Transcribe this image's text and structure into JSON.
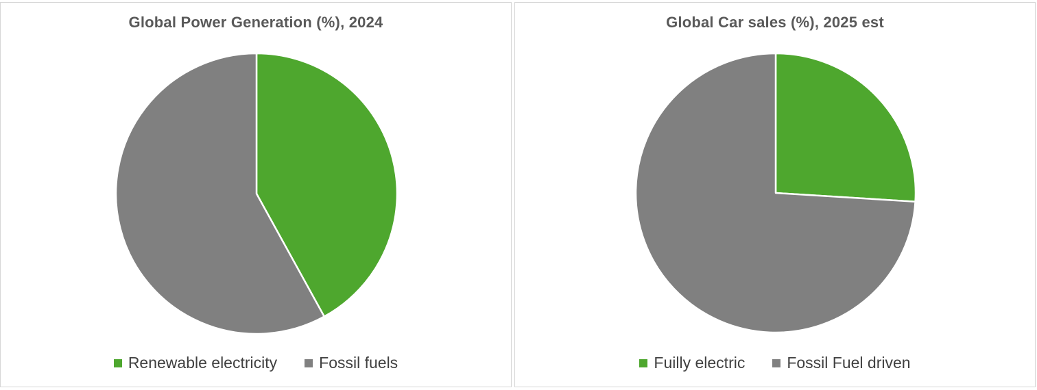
{
  "chart_data": [
    {
      "type": "pie",
      "title": "Global Power Generation (%), 2024",
      "categories": [
        "Renewable electricity",
        "Fossil fuels"
      ],
      "values": [
        42,
        58
      ],
      "colors": [
        "#4ea72e",
        "#808080"
      ],
      "legend_position": "bottom"
    },
    {
      "type": "pie",
      "title": "Global Car sales (%), 2025 est",
      "categories": [
        "Fuilly electric",
        "Fossil Fuel driven"
      ],
      "values": [
        26,
        74
      ],
      "colors": [
        "#4ea72e",
        "#808080"
      ],
      "legend_position": "bottom"
    }
  ]
}
